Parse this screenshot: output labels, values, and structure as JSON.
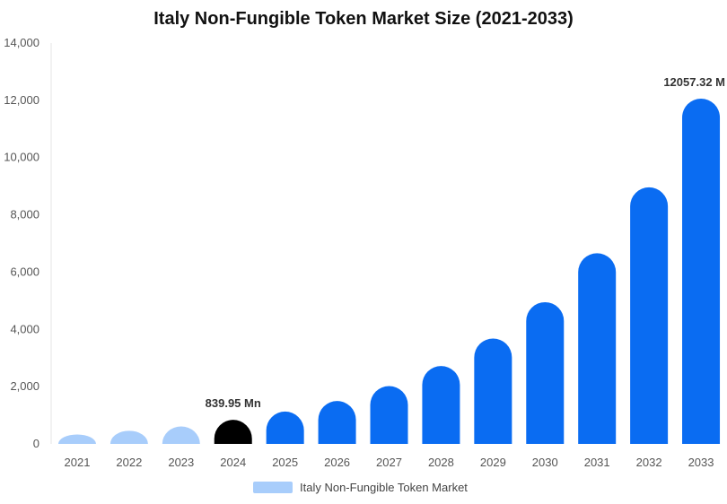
{
  "chart_data": {
    "type": "bar",
    "title": "Italy Non-Fungible Token Market Size (2021-2033)",
    "xlabel": "",
    "ylabel": "",
    "categories": [
      "2021",
      "2022",
      "2023",
      "2024",
      "2025",
      "2026",
      "2027",
      "2028",
      "2029",
      "2030",
      "2031",
      "2032",
      "2033"
    ],
    "series": [
      {
        "name": "Italy Non-Fungible Token Market",
        "values": [
          330,
          460,
          610,
          839.95,
          1130,
          1500,
          2020,
          2720,
          3680,
          4950,
          6660,
          8960,
          12057.32
        ]
      }
    ],
    "ylim": [
      0,
      14000
    ],
    "yticks": [
      0,
      2000,
      4000,
      6000,
      8000,
      10000,
      12000,
      14000
    ],
    "ytick_labels": [
      "0",
      "2,000",
      "4,000",
      "6,000",
      "8,000",
      "10,000",
      "12,000",
      "14,000"
    ],
    "data_labels": [
      {
        "category": "2024",
        "text": "839.95 Mn"
      },
      {
        "category": "2033",
        "text": "12057.32 M"
      }
    ],
    "bar_colors": {
      "historical": "#a8cdfb",
      "base_year": "#000000",
      "forecast": "#0a6cf2"
    },
    "historical_categories": [
      "2021",
      "2022",
      "2023"
    ],
    "base_year_category": "2024",
    "grid": false,
    "legend_position": "bottom"
  }
}
